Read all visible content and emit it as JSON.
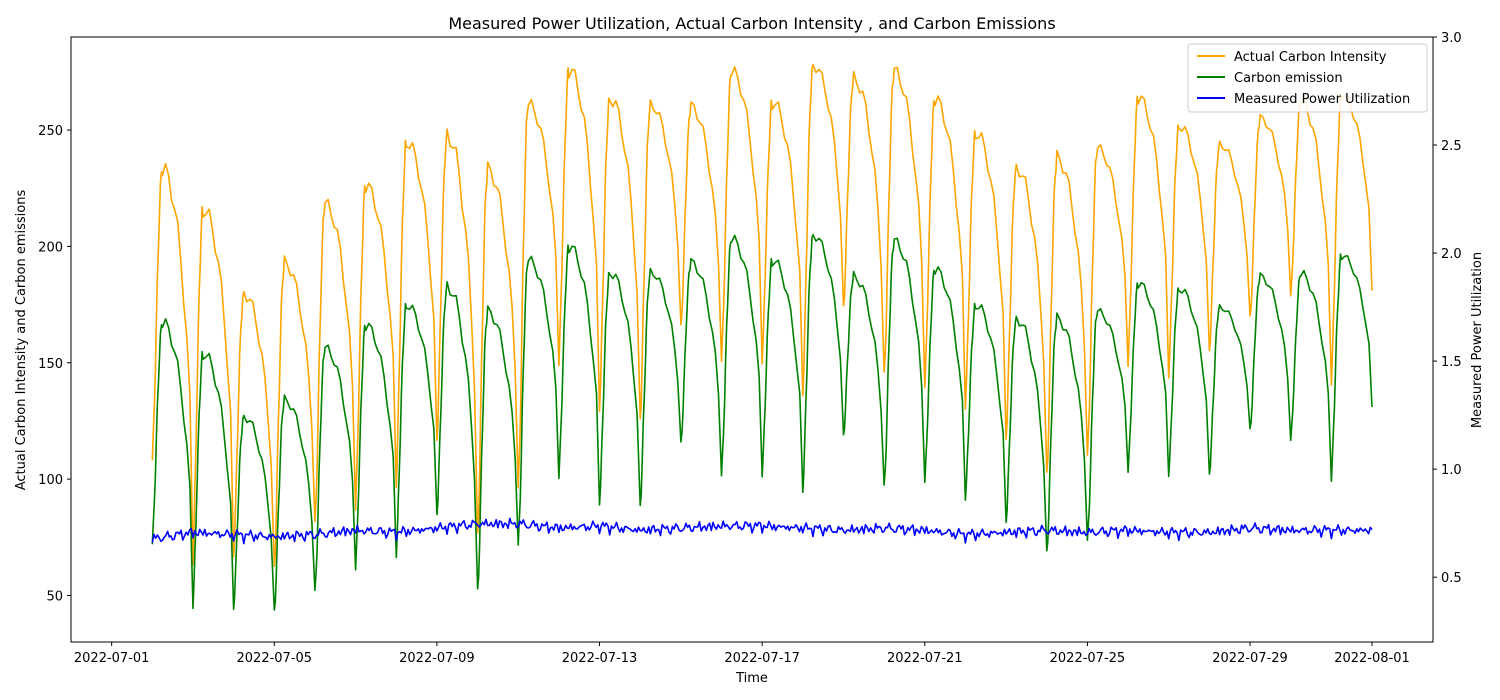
{
  "chart_data": {
    "type": "line",
    "title": "Measured Power Utilization, Actual Carbon Intensity , and Carbon Emissions",
    "xlabel": "Time",
    "ylabel_left": "Actual Carbon Intensity and Carbon emissions",
    "ylabel_right": "Measured Power Utilization",
    "xlim": [
      "2022-06-30T00:00",
      "2022-08-02T12:00"
    ],
    "ylim_left": [
      30,
      290
    ],
    "ylim_right": [
      0.2,
      3.0
    ],
    "x_ticks": [
      "2022-07-01",
      "2022-07-05",
      "2022-07-09",
      "2022-07-13",
      "2022-07-17",
      "2022-07-21",
      "2022-07-25",
      "2022-07-29",
      "2022-08-01"
    ],
    "y_ticks_left": [
      50,
      100,
      150,
      200,
      250
    ],
    "y_ticks_right": [
      0.5,
      1.0,
      1.5,
      2.0,
      2.5,
      3.0
    ],
    "grid": false,
    "legend_position": "top-right",
    "series": [
      {
        "name": "Actual Carbon Intensity",
        "axis": "left",
        "color": "#ffa500",
        "peaks": [
          {
            "x": "2022-07-02T06:00",
            "y": 233
          },
          {
            "x": "2022-07-03T06:00",
            "y": 216
          },
          {
            "x": "2022-07-04T06:00",
            "y": 180
          },
          {
            "x": "2022-07-05T06:00",
            "y": 193
          },
          {
            "x": "2022-07-06T06:00",
            "y": 218
          },
          {
            "x": "2022-07-07T06:00",
            "y": 226
          },
          {
            "x": "2022-07-08T06:00",
            "y": 245
          },
          {
            "x": "2022-07-09T06:00",
            "y": 248
          },
          {
            "x": "2022-07-10T06:00",
            "y": 233
          },
          {
            "x": "2022-07-11T06:00",
            "y": 261
          },
          {
            "x": "2022-07-12T06:00",
            "y": 276
          },
          {
            "x": "2022-07-13T06:00",
            "y": 264
          },
          {
            "x": "2022-07-14T06:00",
            "y": 261
          },
          {
            "x": "2022-07-15T06:00",
            "y": 260
          },
          {
            "x": "2022-07-16T06:00",
            "y": 275
          },
          {
            "x": "2022-07-17T06:00",
            "y": 262
          },
          {
            "x": "2022-07-18T06:00",
            "y": 278
          },
          {
            "x": "2022-07-19T06:00",
            "y": 272
          },
          {
            "x": "2022-07-20T06:00",
            "y": 275
          },
          {
            "x": "2022-07-21T06:00",
            "y": 263
          },
          {
            "x": "2022-07-22T06:00",
            "y": 249
          },
          {
            "x": "2022-07-23T06:00",
            "y": 234
          },
          {
            "x": "2022-07-24T06:00",
            "y": 238
          },
          {
            "x": "2022-07-25T06:00",
            "y": 242
          },
          {
            "x": "2022-07-26T06:00",
            "y": 264
          },
          {
            "x": "2022-07-27T06:00",
            "y": 252
          },
          {
            "x": "2022-07-28T06:00",
            "y": 244
          },
          {
            "x": "2022-07-29T06:00",
            "y": 255
          },
          {
            "x": "2022-07-30T06:00",
            "y": 262
          },
          {
            "x": "2022-07-31T06:00",
            "y": 265
          }
        ],
        "troughs": [
          {
            "x": "2022-07-02T00:00",
            "y": 108
          },
          {
            "x": "2022-07-03T00:00",
            "y": 67
          },
          {
            "x": "2022-07-04T00:00",
            "y": 68
          },
          {
            "x": "2022-07-05T00:00",
            "y": 60
          },
          {
            "x": "2022-07-06T00:00",
            "y": 79
          },
          {
            "x": "2022-07-07T00:00",
            "y": 88
          },
          {
            "x": "2022-07-08T00:00",
            "y": 100
          },
          {
            "x": "2022-07-09T00:00",
            "y": 117
          },
          {
            "x": "2022-07-10T00:00",
            "y": 73
          },
          {
            "x": "2022-07-11T00:00",
            "y": 94
          },
          {
            "x": "2022-07-12T00:00",
            "y": 151
          },
          {
            "x": "2022-07-13T00:00",
            "y": 132
          },
          {
            "x": "2022-07-14T00:00",
            "y": 125
          },
          {
            "x": "2022-07-15T00:00",
            "y": 164
          },
          {
            "x": "2022-07-16T00:00",
            "y": 150
          },
          {
            "x": "2022-07-17T00:00",
            "y": 152
          },
          {
            "x": "2022-07-18T00:00",
            "y": 138
          },
          {
            "x": "2022-07-19T00:00",
            "y": 173
          },
          {
            "x": "2022-07-20T00:00",
            "y": 143
          },
          {
            "x": "2022-07-21T00:00",
            "y": 140
          },
          {
            "x": "2022-07-22T00:00",
            "y": 133
          },
          {
            "x": "2022-07-23T00:00",
            "y": 118
          },
          {
            "x": "2022-07-24T00:00",
            "y": 100
          },
          {
            "x": "2022-07-25T00:00",
            "y": 108
          },
          {
            "x": "2022-07-26T00:00",
            "y": 150
          },
          {
            "x": "2022-07-27T00:00",
            "y": 146
          },
          {
            "x": "2022-07-28T00:00",
            "y": 155
          },
          {
            "x": "2022-07-29T00:00",
            "y": 168
          },
          {
            "x": "2022-07-30T00:00",
            "y": 178
          },
          {
            "x": "2022-07-31T00:00",
            "y": 143
          },
          {
            "x": "2022-08-01T00:00",
            "y": 181
          }
        ]
      },
      {
        "name": "Carbon emission",
        "axis": "left",
        "color": "#008000",
        "peaks": [
          {
            "x": "2022-07-02T06:00",
            "y": 167
          },
          {
            "x": "2022-07-03T06:00",
            "y": 154
          },
          {
            "x": "2022-07-04T06:00",
            "y": 127
          },
          {
            "x": "2022-07-05T06:00",
            "y": 134
          },
          {
            "x": "2022-07-06T06:00",
            "y": 156
          },
          {
            "x": "2022-07-07T06:00",
            "y": 166
          },
          {
            "x": "2022-07-08T06:00",
            "y": 175
          },
          {
            "x": "2022-07-09T06:00",
            "y": 183
          },
          {
            "x": "2022-07-10T06:00",
            "y": 172
          },
          {
            "x": "2022-07-11T06:00",
            "y": 194
          },
          {
            "x": "2022-07-12T06:00",
            "y": 200
          },
          {
            "x": "2022-07-13T06:00",
            "y": 189
          },
          {
            "x": "2022-07-14T06:00",
            "y": 189
          },
          {
            "x": "2022-07-15T06:00",
            "y": 193
          },
          {
            "x": "2022-07-16T06:00",
            "y": 203
          },
          {
            "x": "2022-07-17T06:00",
            "y": 194
          },
          {
            "x": "2022-07-18T06:00",
            "y": 205
          },
          {
            "x": "2022-07-19T06:00",
            "y": 187
          },
          {
            "x": "2022-07-20T06:00",
            "y": 202
          },
          {
            "x": "2022-07-21T06:00",
            "y": 190
          },
          {
            "x": "2022-07-22T06:00",
            "y": 175
          },
          {
            "x": "2022-07-23T06:00",
            "y": 169
          },
          {
            "x": "2022-07-24T06:00",
            "y": 169
          },
          {
            "x": "2022-07-25T06:00",
            "y": 172
          },
          {
            "x": "2022-07-26T06:00",
            "y": 184
          },
          {
            "x": "2022-07-27T06:00",
            "y": 182
          },
          {
            "x": "2022-07-28T06:00",
            "y": 174
          },
          {
            "x": "2022-07-29T06:00",
            "y": 187
          },
          {
            "x": "2022-07-30T06:00",
            "y": 188
          },
          {
            "x": "2022-07-31T06:00",
            "y": 196
          }
        ],
        "troughs": [
          {
            "x": "2022-07-02T00:00",
            "y": 72
          },
          {
            "x": "2022-07-03T00:00",
            "y": 47
          },
          {
            "x": "2022-07-04T00:00",
            "y": 45
          },
          {
            "x": "2022-07-05T00:00",
            "y": 42
          },
          {
            "x": "2022-07-06T00:00",
            "y": 50
          },
          {
            "x": "2022-07-07T00:00",
            "y": 62
          },
          {
            "x": "2022-07-08T00:00",
            "y": 69
          },
          {
            "x": "2022-07-09T00:00",
            "y": 85
          },
          {
            "x": "2022-07-10T00:00",
            "y": 50
          },
          {
            "x": "2022-07-11T00:00",
            "y": 70
          },
          {
            "x": "2022-07-12T00:00",
            "y": 102
          },
          {
            "x": "2022-07-13T00:00",
            "y": 91
          },
          {
            "x": "2022-07-14T00:00",
            "y": 88
          },
          {
            "x": "2022-07-15T00:00",
            "y": 114
          },
          {
            "x": "2022-07-16T00:00",
            "y": 101
          },
          {
            "x": "2022-07-17T00:00",
            "y": 103
          },
          {
            "x": "2022-07-18T00:00",
            "y": 96
          },
          {
            "x": "2022-07-19T00:00",
            "y": 118
          },
          {
            "x": "2022-07-20T00:00",
            "y": 95
          },
          {
            "x": "2022-07-21T00:00",
            "y": 99
          },
          {
            "x": "2022-07-22T00:00",
            "y": 93
          },
          {
            "x": "2022-07-23T00:00",
            "y": 82
          },
          {
            "x": "2022-07-24T00:00",
            "y": 67
          },
          {
            "x": "2022-07-25T00:00",
            "y": 72
          },
          {
            "x": "2022-07-26T00:00",
            "y": 104
          },
          {
            "x": "2022-07-27T00:00",
            "y": 103
          },
          {
            "x": "2022-07-28T00:00",
            "y": 102
          },
          {
            "x": "2022-07-29T00:00",
            "y": 120
          },
          {
            "x": "2022-07-30T00:00",
            "y": 116
          },
          {
            "x": "2022-07-31T00:00",
            "y": 101
          },
          {
            "x": "2022-08-01T00:00",
            "y": 131
          }
        ]
      },
      {
        "name": "Measured Power Utilization",
        "axis": "right",
        "color": "#0000ff",
        "points": [
          {
            "x": "2022-07-02T00:00",
            "y": 0.68
          },
          {
            "x": "2022-07-03T00:00",
            "y": 0.71
          },
          {
            "x": "2022-07-04T00:00",
            "y": 0.7
          },
          {
            "x": "2022-07-05T00:00",
            "y": 0.69
          },
          {
            "x": "2022-07-06T00:00",
            "y": 0.7
          },
          {
            "x": "2022-07-07T00:00",
            "y": 0.72
          },
          {
            "x": "2022-07-08T00:00",
            "y": 0.71
          },
          {
            "x": "2022-07-09T00:00",
            "y": 0.73
          },
          {
            "x": "2022-07-10T00:00",
            "y": 0.75
          },
          {
            "x": "2022-07-11T00:00",
            "y": 0.75
          },
          {
            "x": "2022-07-12T00:00",
            "y": 0.73
          },
          {
            "x": "2022-07-13T00:00",
            "y": 0.74
          },
          {
            "x": "2022-07-14T00:00",
            "y": 0.72
          },
          {
            "x": "2022-07-15T00:00",
            "y": 0.73
          },
          {
            "x": "2022-07-16T00:00",
            "y": 0.74
          },
          {
            "x": "2022-07-17T00:00",
            "y": 0.74
          },
          {
            "x": "2022-07-18T00:00",
            "y": 0.73
          },
          {
            "x": "2022-07-19T00:00",
            "y": 0.72
          },
          {
            "x": "2022-07-20T00:00",
            "y": 0.73
          },
          {
            "x": "2022-07-21T00:00",
            "y": 0.72
          },
          {
            "x": "2022-07-22T00:00",
            "y": 0.7
          },
          {
            "x": "2022-07-23T00:00",
            "y": 0.71
          },
          {
            "x": "2022-07-24T00:00",
            "y": 0.72
          },
          {
            "x": "2022-07-25T00:00",
            "y": 0.71
          },
          {
            "x": "2022-07-26T00:00",
            "y": 0.72
          },
          {
            "x": "2022-07-27T00:00",
            "y": 0.71
          },
          {
            "x": "2022-07-28T00:00",
            "y": 0.71
          },
          {
            "x": "2022-07-29T00:00",
            "y": 0.73
          },
          {
            "x": "2022-07-30T00:00",
            "y": 0.72
          },
          {
            "x": "2022-07-31T00:00",
            "y": 0.72
          },
          {
            "x": "2022-08-01T00:00",
            "y": 0.72
          }
        ]
      }
    ]
  }
}
